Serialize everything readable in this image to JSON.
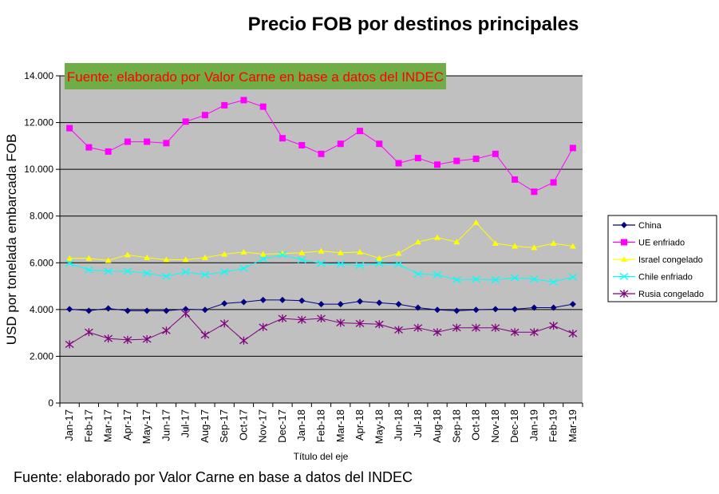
{
  "chart_data": {
    "type": "line",
    "title": "Precio FOB por destinos principales",
    "xlabel": "Título del eje",
    "ylabel": "USD por tonelada embarcada FOB",
    "ylim": [
      0,
      14000
    ],
    "yticks": [
      "0",
      "2.000",
      "4.000",
      "6.000",
      "8.000",
      "10.000",
      "12.000",
      "14.000"
    ],
    "ytick_values": [
      0,
      2000,
      4000,
      6000,
      8000,
      10000,
      12000,
      14000
    ],
    "grid": true,
    "legend_position": "right",
    "categories": [
      "Jan-17",
      "Feb-17",
      "Mar-17",
      "Apr-17",
      "May-17",
      "Jun-17",
      "Jul-17",
      "Aug-17",
      "Sep-17",
      "Oct-17",
      "Nov-17",
      "Dec-17",
      "Jan-18",
      "Feb-18",
      "Mar-18",
      "Apr-18",
      "May-18",
      "Jun-18",
      "Jul-18",
      "Aug-18",
      "Sep-18",
      "Oct-18",
      "Nov-18",
      "Dec-18",
      "Jan-19",
      "Feb-19",
      "Mar-19"
    ],
    "series": [
      {
        "name": "China",
        "color": "#000080",
        "marker": "diamond",
        "values": [
          4015,
          3950,
          4045,
          3950,
          3950,
          3950,
          4015,
          3985,
          4260,
          4320,
          4410,
          4410,
          4380,
          4230,
          4230,
          4350,
          4290,
          4230,
          4080,
          3985,
          3950,
          3985,
          4015,
          4015,
          4080,
          4080,
          4230
        ]
      },
      {
        "name": "UE enfriado",
        "color": "#FF00FF",
        "marker": "square",
        "values": [
          11760,
          10940,
          10760,
          11180,
          11180,
          11120,
          12040,
          12320,
          12740,
          12960,
          12680,
          11330,
          11030,
          10660,
          11090,
          11640,
          11090,
          10260,
          10480,
          10200,
          10360,
          10450,
          10660,
          9560,
          9040,
          9440,
          10910
        ]
      },
      {
        "name": "Israel congelado",
        "color": "#FFFF00",
        "marker": "triangle",
        "values": [
          6190,
          6190,
          6100,
          6340,
          6220,
          6130,
          6130,
          6220,
          6370,
          6460,
          6370,
          6400,
          6430,
          6500,
          6430,
          6460,
          6190,
          6400,
          6890,
          7080,
          6890,
          7720,
          6830,
          6710,
          6650,
          6830,
          6710
        ]
      },
      {
        "name": "Chile enfriado",
        "color": "#00FFFF",
        "marker": "x",
        "values": [
          5975,
          5700,
          5640,
          5640,
          5550,
          5420,
          5610,
          5490,
          5610,
          5760,
          6160,
          6340,
          6130,
          5975,
          5940,
          5880,
          5975,
          5940,
          5520,
          5490,
          5270,
          5300,
          5270,
          5360,
          5300,
          5180,
          5390
        ]
      },
      {
        "name": "Rusia congelado",
        "color": "#800080",
        "marker": "asterisk",
        "values": [
          2510,
          3030,
          2760,
          2700,
          2730,
          3100,
          3830,
          2910,
          3400,
          2670,
          3250,
          3620,
          3560,
          3620,
          3430,
          3400,
          3370,
          3130,
          3220,
          3030,
          3220,
          3220,
          3220,
          3030,
          3030,
          3310,
          2970
        ]
      }
    ]
  },
  "annotation": "Fuente: elaborado por Valor Carne en base a datos del INDEC",
  "footer": "Fuente: elaborado por Valor Carne en base a datos del INDEC"
}
